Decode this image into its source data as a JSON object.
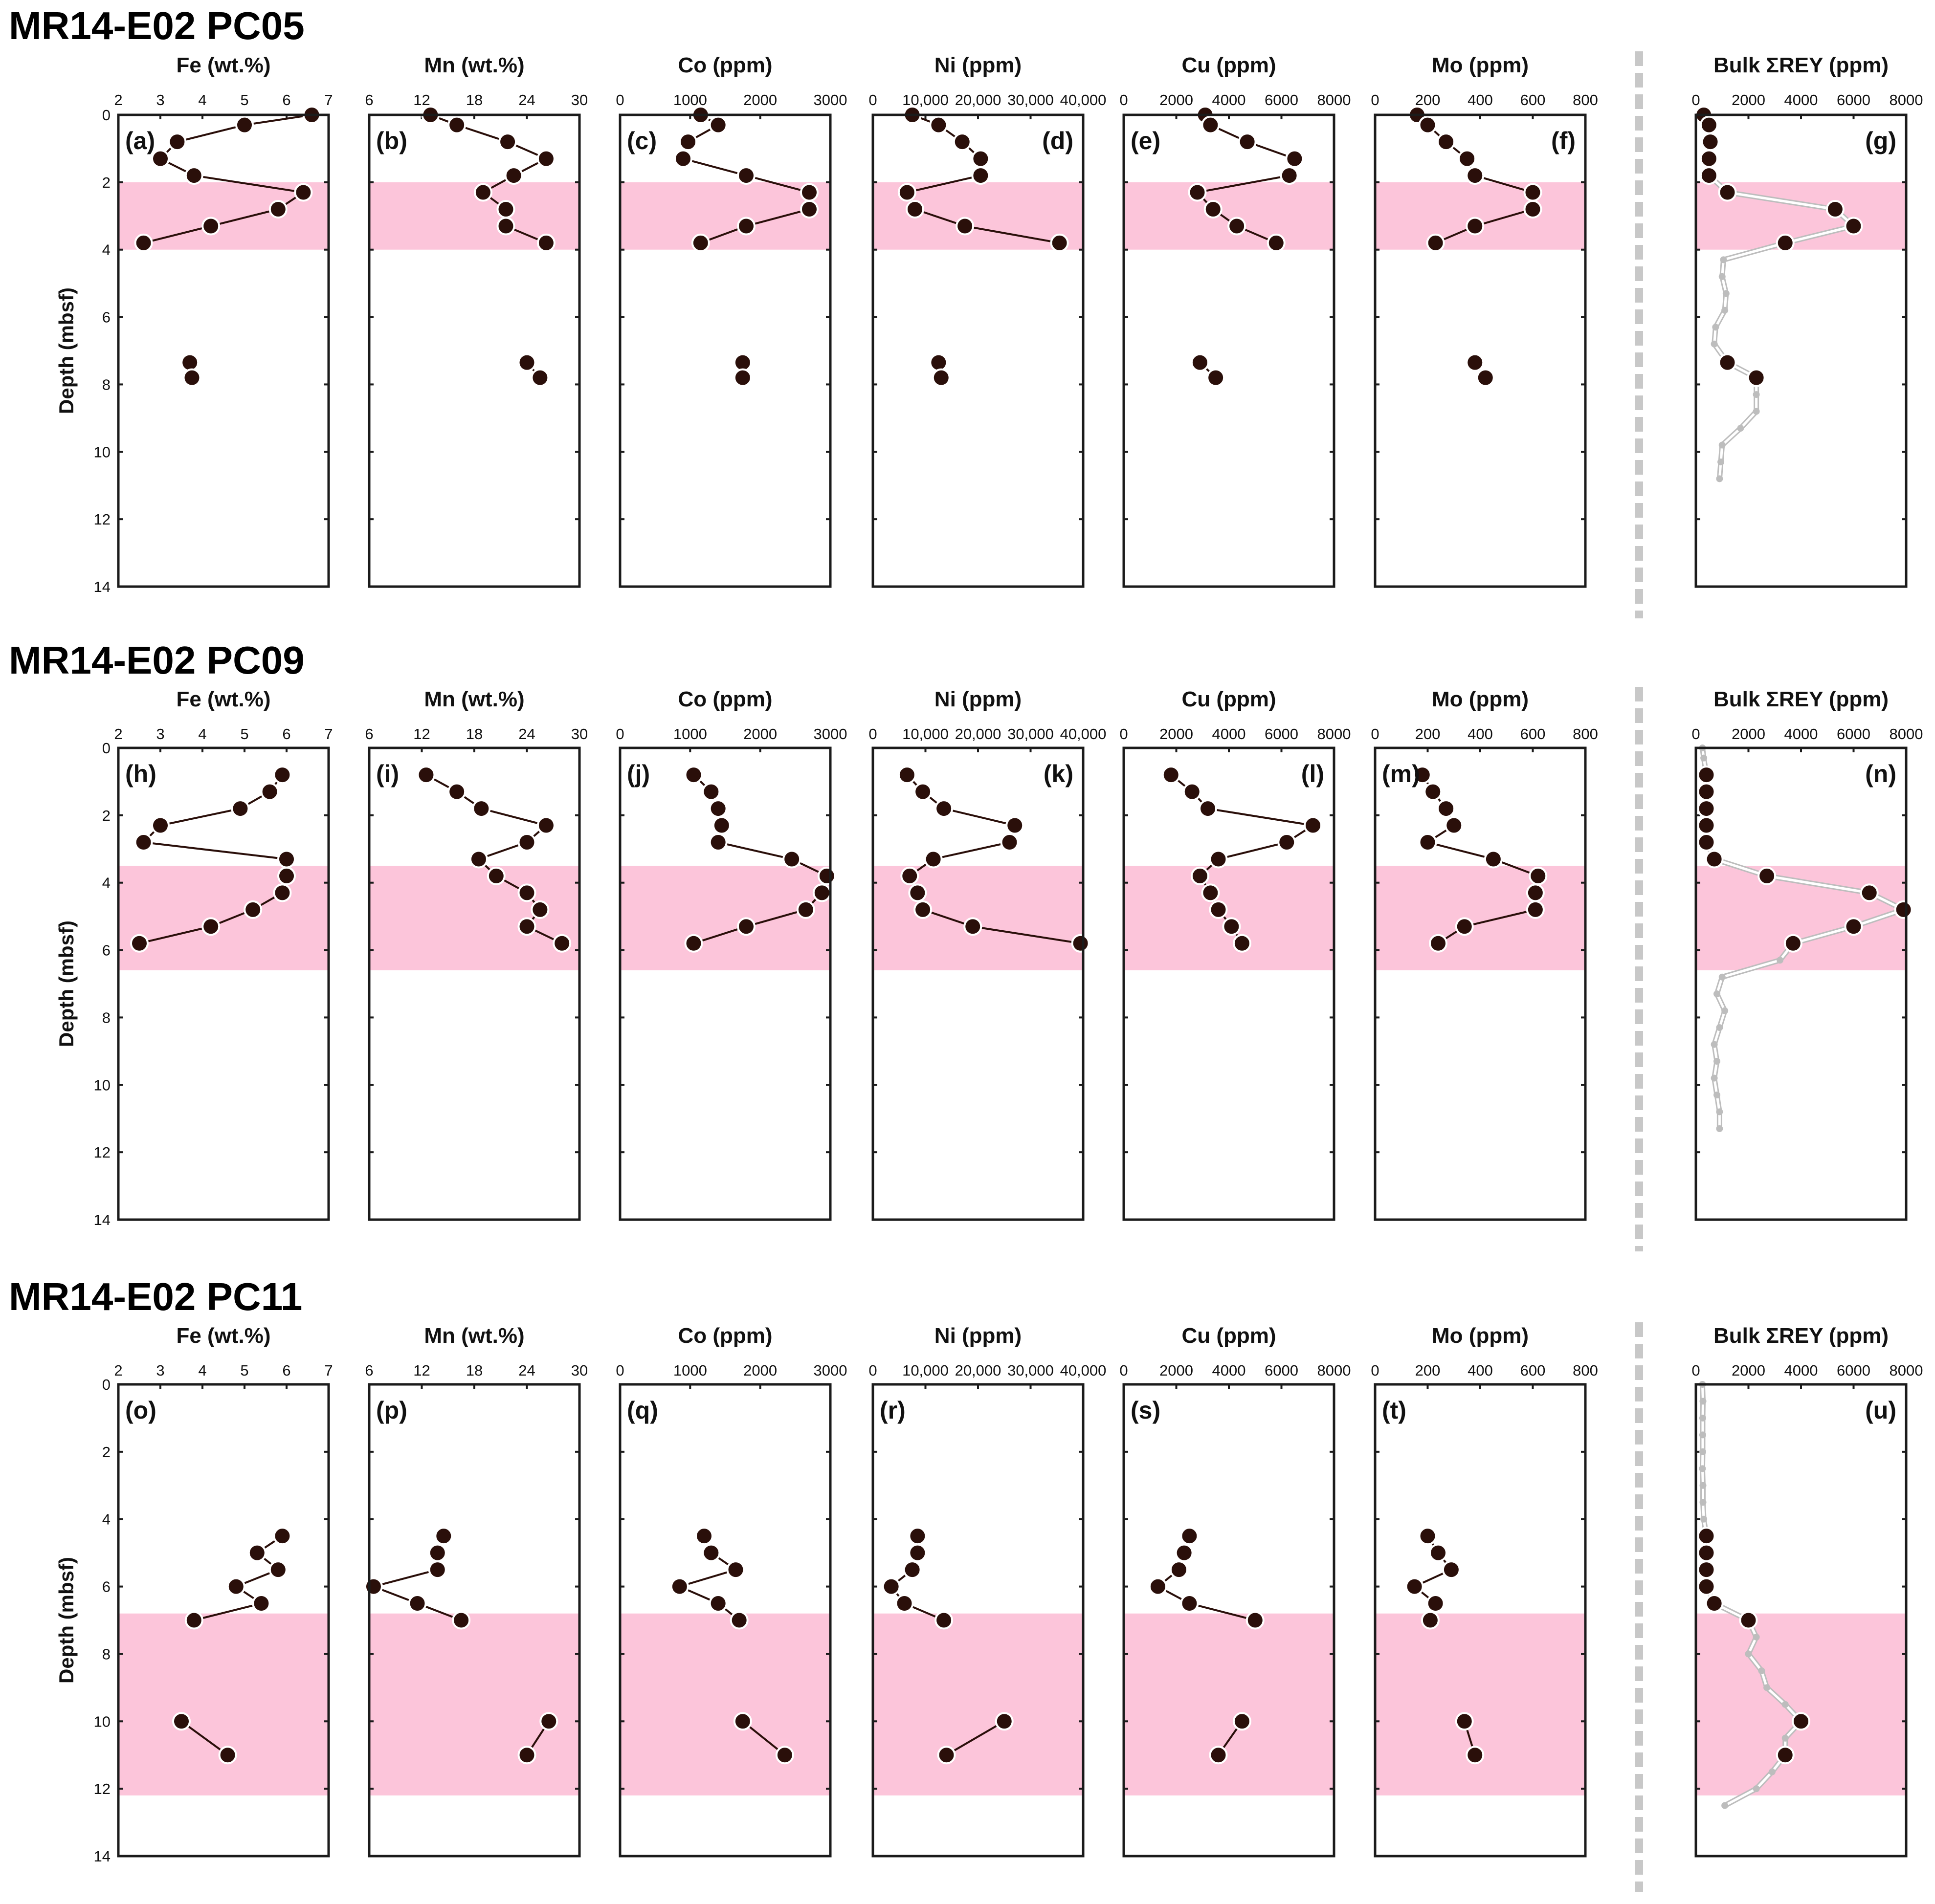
{
  "colors": {
    "band": "#fcc5da",
    "marker": "#2a0f0a",
    "line": "#2a0f0a",
    "grey": "#bdbdbd",
    "frame": "#1b1b1b",
    "divider": "#c8c8c8"
  },
  "chart_data": {
    "type": "scatter",
    "y_axis": {
      "label": "Depth (mbsf)",
      "range": [
        0,
        14
      ],
      "ticks": [
        "0",
        "2",
        "4",
        "6",
        "8",
        "10",
        "12",
        "14"
      ],
      "inverted": true
    },
    "elements": [
      {
        "key": "Fe",
        "title": "Fe (wt.%)",
        "range": [
          2,
          7
        ],
        "ticks": [
          {
            "v": 2,
            "t": "2"
          },
          {
            "v": 3,
            "t": "3"
          },
          {
            "v": 4,
            "t": "4"
          },
          {
            "v": 5,
            "t": "5"
          },
          {
            "v": 6,
            "t": "6"
          },
          {
            "v": 7,
            "t": "7"
          }
        ]
      },
      {
        "key": "Mn",
        "title": "Mn (wt.%)",
        "range": [
          6,
          30
        ],
        "ticks": [
          {
            "v": 6,
            "t": "6"
          },
          {
            "v": 12,
            "t": "12"
          },
          {
            "v": 18,
            "t": "18"
          },
          {
            "v": 24,
            "t": "24"
          },
          {
            "v": 30,
            "t": "30"
          }
        ]
      },
      {
        "key": "Co",
        "title": "Co (ppm)",
        "range": [
          0,
          3000
        ],
        "ticks": [
          {
            "v": 0,
            "t": "0"
          },
          {
            "v": 1000,
            "t": "1000"
          },
          {
            "v": 2000,
            "t": "2000"
          },
          {
            "v": 3000,
            "t": "3000"
          }
        ]
      },
      {
        "key": "Ni",
        "title": "Ni (ppm)",
        "range": [
          0,
          40000
        ],
        "ticks": [
          {
            "v": 0,
            "t": "0"
          },
          {
            "v": 10000,
            "t": "10,000"
          },
          {
            "v": 20000,
            "t": "20,000"
          },
          {
            "v": 30000,
            "t": "30,000"
          },
          {
            "v": 40000,
            "t": "40,000"
          }
        ]
      },
      {
        "key": "Cu",
        "title": "Cu (ppm)",
        "range": [
          0,
          8000
        ],
        "ticks": [
          {
            "v": 0,
            "t": "0"
          },
          {
            "v": 2000,
            "t": "2000"
          },
          {
            "v": 4000,
            "t": "4000"
          },
          {
            "v": 6000,
            "t": "6000"
          },
          {
            "v": 8000,
            "t": "8000"
          }
        ]
      },
      {
        "key": "Mo",
        "title": "Mo (ppm)",
        "range": [
          0,
          800
        ],
        "ticks": [
          {
            "v": 0,
            "t": "0"
          },
          {
            "v": 200,
            "t": "200"
          },
          {
            "v": 400,
            "t": "400"
          },
          {
            "v": 600,
            "t": "600"
          },
          {
            "v": 800,
            "t": "800"
          }
        ]
      },
      {
        "key": "REY",
        "title": "Bulk ΣREY (ppm)",
        "range": [
          0,
          8000
        ],
        "ticks": [
          {
            "v": 0,
            "t": "0"
          },
          {
            "v": 2000,
            "t": "2000"
          },
          {
            "v": 4000,
            "t": "4000"
          },
          {
            "v": 6000,
            "t": "6000"
          },
          {
            "v": 8000,
            "t": "8000"
          }
        ]
      }
    ],
    "cores": [
      {
        "name": "MR14-E02 PC05",
        "highlight_depth": [
          2,
          4
        ],
        "panel_labels": [
          "(a)",
          "(b)",
          "(c)",
          "(d)",
          "(e)",
          "(f)",
          "(g)"
        ],
        "depths": [
          0,
          0.3,
          0.8,
          1.3,
          1.8,
          2.3,
          2.8,
          3.3,
          3.8,
          7.35,
          7.8
        ],
        "segment_break_after": 8,
        "Fe": [
          6.6,
          5.0,
          3.4,
          3.0,
          3.8,
          6.4,
          5.8,
          4.2,
          2.6,
          3.7,
          3.75
        ],
        "Mn": [
          13.0,
          16.0,
          21.8,
          26.2,
          22.5,
          19.0,
          21.6,
          21.6,
          26.2,
          24.0,
          25.5
        ],
        "Co": [
          1150,
          1400,
          970,
          900,
          1800,
          2700,
          2700,
          1800,
          1150,
          1750,
          1750
        ],
        "Ni": [
          7500,
          12500,
          17000,
          20500,
          20500,
          6500,
          8000,
          17500,
          35500,
          12500,
          13000
        ],
        "Cu": [
          3100,
          3300,
          4700,
          6500,
          6300,
          2800,
          3400,
          4300,
          5800,
          2900,
          3500
        ],
        "Mo": [
          160,
          200,
          270,
          350,
          380,
          600,
          600,
          380,
          230,
          380,
          420
        ],
        "REY_grey": {
          "depths": [
            0,
            0.3,
            0.8,
            1.3,
            1.8,
            2.3,
            2.8,
            3.3,
            3.8,
            4.3,
            4.8,
            5.3,
            5.8,
            6.3,
            6.8,
            7.35,
            7.8,
            8.3,
            8.8,
            9.3,
            9.8,
            10.3,
            10.8
          ],
          "values": [
            300,
            500,
            550,
            500,
            500,
            1200,
            5300,
            6000,
            3400,
            1050,
            1000,
            1150,
            1100,
            750,
            700,
            1200,
            2300,
            2300,
            2300,
            1700,
            1000,
            950,
            900
          ]
        },
        "REY_points": {
          "depths": [
            0,
            0.3,
            0.8,
            1.3,
            1.8,
            2.3,
            2.8,
            3.3,
            3.8,
            7.35,
            7.8
          ],
          "values": [
            300,
            500,
            550,
            500,
            500,
            1200,
            5300,
            6000,
            3400,
            1200,
            2300
          ]
        }
      },
      {
        "name": "MR14-E02 PC09",
        "highlight_depth": [
          3.5,
          6.6
        ],
        "panel_labels": [
          "(h)",
          "(i)",
          "(j)",
          "(k)",
          "(l)",
          "(m)",
          "(n)"
        ],
        "depths": [
          0.8,
          1.3,
          1.8,
          2.3,
          2.8,
          3.3,
          3.8,
          4.3,
          4.8,
          5.3,
          5.8
        ],
        "segment_break_after": null,
        "Fe": [
          5.9,
          5.6,
          4.9,
          3.0,
          2.6,
          6.0,
          6.0,
          5.9,
          5.2,
          4.2,
          2.5
        ],
        "Mn": [
          12.5,
          16.0,
          18.8,
          26.2,
          24.0,
          18.5,
          20.5,
          24.0,
          25.5,
          24.0,
          28.0
        ],
        "Co": [
          1050,
          1300,
          1400,
          1450,
          1400,
          2450,
          2950,
          2880,
          2650,
          1800,
          1050
        ],
        "Ni": [
          6500,
          9500,
          13500,
          27000,
          26000,
          11500,
          7000,
          8500,
          9500,
          19000,
          39500
        ],
        "Cu": [
          1800,
          2600,
          3200,
          7200,
          6200,
          3600,
          2900,
          3300,
          3600,
          4100,
          4500
        ],
        "Mo": [
          180,
          220,
          270,
          300,
          200,
          450,
          620,
          610,
          610,
          340,
          240
        ],
        "REY_grey": {
          "depths": [
            0,
            0.3,
            0.8,
            1.3,
            1.8,
            2.3,
            2.8,
            3.3,
            3.8,
            4.3,
            4.8,
            5.3,
            5.8,
            6.3,
            6.8,
            7.3,
            7.8,
            8.3,
            8.8,
            9.3,
            9.8,
            10.3,
            10.8,
            11.3
          ],
          "values": [
            250,
            300,
            400,
            400,
            400,
            400,
            400,
            700,
            2700,
            6600,
            7900,
            6000,
            3700,
            3200,
            1000,
            800,
            1100,
            900,
            700,
            800,
            700,
            800,
            900,
            900
          ]
        },
        "REY_points": {
          "depths": [
            0.8,
            1.3,
            1.8,
            2.3,
            2.8,
            3.3,
            3.8,
            4.3,
            4.8,
            5.3,
            5.8
          ],
          "values": [
            400,
            400,
            400,
            400,
            400,
            700,
            2700,
            6600,
            7900,
            6000,
            3700
          ]
        }
      },
      {
        "name": "MR14-E02 PC11",
        "highlight_depth": [
          6.8,
          12.2
        ],
        "panel_labels": [
          "(o)",
          "(p)",
          "(q)",
          "(r)",
          "(s)",
          "(t)",
          "(u)"
        ],
        "depths": [
          4.5,
          5.0,
          5.5,
          6.0,
          6.5,
          7.0,
          10.0,
          11.0
        ],
        "segment_break_after": 5,
        "Fe": [
          5.9,
          5.3,
          5.8,
          4.8,
          5.4,
          3.8,
          3.5,
          4.6
        ],
        "Mn": [
          14.5,
          13.8,
          13.8,
          6.5,
          11.5,
          16.5,
          26.5,
          24.0
        ],
        "Co": [
          1200,
          1300,
          1650,
          850,
          1400,
          1700,
          1750,
          2350
        ],
        "Ni": [
          8500,
          8500,
          7500,
          3500,
          6000,
          13500,
          25000,
          14000
        ],
        "Cu": [
          2500,
          2300,
          2100,
          1300,
          2500,
          5000,
          4500,
          3600
        ],
        "Mo": [
          200,
          240,
          290,
          150,
          230,
          210,
          340,
          380
        ],
        "REY_grey": {
          "depths": [
            0,
            0.5,
            1.0,
            1.5,
            2.0,
            2.5,
            3.0,
            3.5,
            4.0,
            4.5,
            5.0,
            5.5,
            6.0,
            6.5,
            7.0,
            7.5,
            8.0,
            8.5,
            9.0,
            9.5,
            10.0,
            10.5,
            11.0,
            11.5,
            12.0,
            12.5
          ],
          "values": [
            250,
            270,
            260,
            260,
            260,
            250,
            270,
            270,
            300,
            400,
            400,
            400,
            400,
            700,
            2000,
            2300,
            2000,
            2500,
            2700,
            3400,
            4000,
            3400,
            3400,
            2900,
            2300,
            1100
          ]
        },
        "REY_points": {
          "depths": [
            4.5,
            5.0,
            5.5,
            6.0,
            6.5,
            7.0,
            10.0,
            11.0
          ],
          "values": [
            400,
            400,
            400,
            400,
            700,
            2000,
            4000,
            3400
          ]
        }
      }
    ]
  }
}
